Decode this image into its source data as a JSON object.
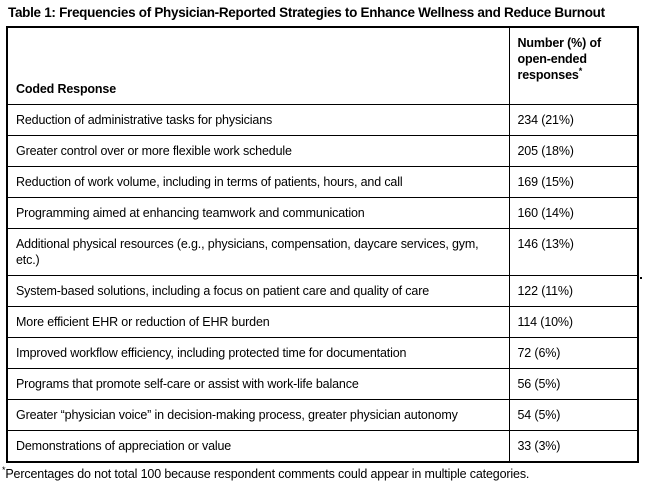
{
  "title": "Table 1: Frequencies of Physician-Reported Strategies to Enhance Wellness and Reduce Burnout",
  "table": {
    "header": {
      "response_col": "Coded Response",
      "count_col": "Number (%) of open-ended responses",
      "count_col_marker": "*"
    },
    "rows": [
      {
        "response": "Reduction of administrative tasks for physicians",
        "count": "234 (21%)"
      },
      {
        "response": "Greater control over or more flexible work schedule",
        "count": "205 (18%)"
      },
      {
        "response": "Reduction of work volume, including in terms of patients, hours, and call",
        "count": "169 (15%)"
      },
      {
        "response": "Programming aimed at enhancing teamwork and communication",
        "count": "160 (14%)"
      },
      {
        "response": "Additional physical resources (e.g., physicians, compensation, daycare services, gym, etc.)",
        "count": "146 (13%)"
      },
      {
        "response": "System-based solutions, including a focus on patient care and quality of care",
        "count": "122 (11%)"
      },
      {
        "response": "More efficient EHR or reduction of EHR burden",
        "count": "114 (10%)"
      },
      {
        "response": "Improved workflow efficiency, including protected time for documentation",
        "count": "72 (6%)"
      },
      {
        "response": "Programs that promote self-care or assist with work-life balance",
        "count": "56 (5%)"
      },
      {
        "response": "Greater “physician voice” in decision-making process, greater physician autonomy",
        "count": "54 (5%)"
      },
      {
        "response": "Demonstrations of appreciation or value",
        "count": "33 (3%)"
      }
    ]
  },
  "footnote": {
    "marker": "*",
    "text": "Percentages do not total 100 because respondent comments could appear in multiple categories."
  }
}
